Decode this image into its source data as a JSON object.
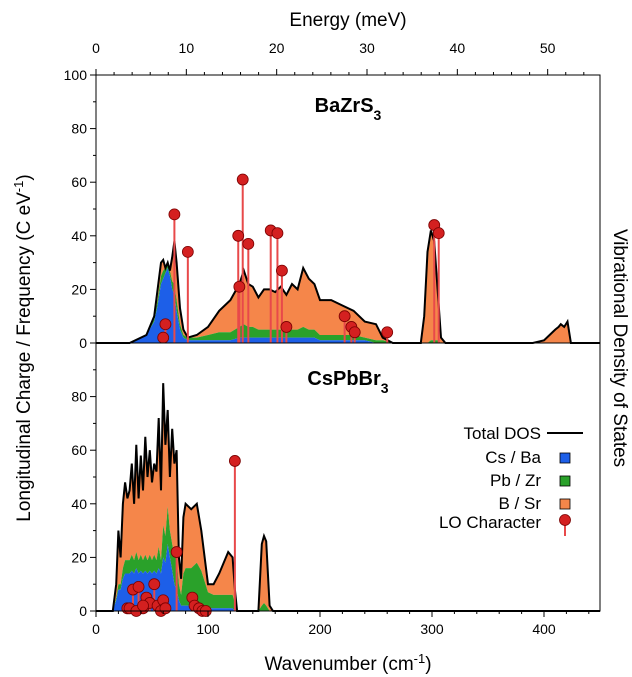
{
  "chart_data": {
    "type": "area",
    "top_axis": {
      "label": "Energy (meV)",
      "ticks": [
        "0",
        "10",
        "20",
        "30",
        "40",
        "50"
      ],
      "values": [
        0,
        10,
        20,
        30,
        40,
        50
      ],
      "meV_per_cm1": 0.123984
    },
    "x_axis": {
      "label": "Wavenumber (cm",
      "label_sup": "-1",
      "label_end": ")",
      "range": [
        0,
        450
      ],
      "ticks": [
        "0",
        "100",
        "200",
        "300",
        "400"
      ],
      "values": [
        0,
        100,
        200,
        300,
        400
      ]
    },
    "y_label_left": "Longitudinal Charge / Frequency (C eV",
    "y_label_left_sup": "-1",
    "y_label_left_end": ")",
    "y_label_right": "Vibrational Density of States",
    "legend": {
      "total": "Total DOS",
      "cs": "Cs / Ba",
      "pb": "Pb / Zr",
      "b": "B / Sr",
      "lo": "LO Character"
    },
    "colors": {
      "cs": "#1d5fe8",
      "pb": "#2aa12a",
      "b": "#f5864a",
      "lo_line": "#e8494a",
      "lo_marker": "#d42020",
      "total": "#000000"
    },
    "panels": [
      {
        "name": "BaZrS",
        "name_sub": "3",
        "ylim": [
          0,
          100
        ],
        "y_ticks": [
          "0",
          "20",
          "40",
          "60",
          "80",
          "100"
        ],
        "y_values": [
          0,
          20,
          40,
          60,
          80,
          100
        ],
        "dos": {
          "x": [
            0,
            30,
            45,
            52,
            55,
            58,
            60,
            62,
            64,
            66,
            68,
            70,
            72,
            75,
            78,
            82,
            90,
            100,
            110,
            120,
            128,
            132,
            136,
            140,
            145,
            150,
            155,
            160,
            165,
            170,
            175,
            180,
            185,
            190,
            195,
            200,
            210,
            220,
            230,
            240,
            250,
            256,
            265,
            280,
            290,
            293,
            296,
            299,
            302,
            305,
            308,
            312,
            330,
            360,
            390,
            400,
            405,
            410,
            413,
            415,
            418,
            421,
            424,
            450
          ],
          "total": [
            0,
            0,
            3,
            10,
            20,
            30,
            31,
            28,
            30,
            27,
            32,
            38,
            30,
            13,
            5,
            2,
            3,
            6,
            12,
            16,
            22,
            27,
            22,
            21,
            17,
            20,
            20,
            19,
            21,
            18,
            22,
            20,
            28,
            24,
            22,
            16,
            16,
            14,
            12,
            8,
            7,
            2,
            0,
            0,
            0,
            10,
            34,
            42,
            38,
            20,
            2,
            0,
            0,
            0,
            0,
            1,
            3,
            5,
            6,
            7,
            6,
            8,
            0,
            0
          ],
          "cs": [
            0,
            0,
            3,
            8,
            14,
            22,
            24,
            26,
            28,
            25,
            20,
            18,
            12,
            5,
            2,
            1,
            1,
            1,
            1,
            1,
            2,
            2,
            2,
            2,
            2,
            2,
            2,
            2,
            2,
            2,
            2,
            2,
            2,
            2,
            2,
            1,
            1,
            1,
            1,
            1,
            0,
            0,
            0,
            0,
            0,
            0,
            0,
            0,
            0,
            0,
            0,
            0,
            0,
            0,
            0,
            0,
            0,
            0,
            0,
            0,
            0,
            0,
            0,
            0
          ],
          "pb": [
            0,
            0,
            0,
            1,
            2,
            3,
            3,
            2,
            2,
            2,
            3,
            4,
            4,
            2,
            1,
            1,
            1,
            2,
            3,
            3,
            4,
            5,
            4,
            4,
            3,
            3,
            3,
            3,
            3,
            3,
            3,
            3,
            4,
            3,
            3,
            2,
            2,
            2,
            2,
            1,
            1,
            1,
            0,
            0,
            0,
            0,
            0,
            1,
            1,
            1,
            0,
            0,
            0,
            0,
            0,
            0,
            0,
            0,
            0,
            0,
            0,
            0,
            0,
            0
          ]
        },
        "lo": {
          "x": [
            70,
            82,
            60,
            62,
            127,
            128,
            131,
            136,
            156,
            162,
            166,
            170,
            222,
            228,
            231,
            260,
            302,
            306
          ],
          "y": [
            48,
            34,
            2,
            7,
            40,
            21,
            61,
            37,
            42,
            41,
            27,
            6,
            10,
            6,
            4,
            4,
            44,
            41
          ]
        }
      },
      {
        "name": "CsPbBr",
        "name_sub": "3",
        "ylim": [
          0,
          100
        ],
        "y_ticks": [
          "0",
          "20",
          "40",
          "60",
          "80"
        ],
        "y_values": [
          0,
          20,
          40,
          60,
          80
        ],
        "dos": {
          "x": [
            0,
            15,
            18,
            20,
            22,
            24,
            26,
            28,
            30,
            32,
            34,
            36,
            38,
            40,
            42,
            44,
            46,
            48,
            50,
            52,
            54,
            56,
            58,
            60,
            62,
            64,
            66,
            68,
            70,
            72,
            74,
            76,
            78,
            80,
            85,
            90,
            94,
            100,
            105,
            110,
            118,
            122,
            124,
            126,
            135,
            140,
            145,
            148,
            150,
            152,
            155,
            158,
            160,
            450
          ],
          "total": [
            0,
            0,
            10,
            30,
            20,
            40,
            48,
            42,
            45,
            55,
            40,
            62,
            42,
            58,
            45,
            65,
            50,
            60,
            48,
            55,
            52,
            72,
            45,
            85,
            62,
            75,
            50,
            68,
            55,
            60,
            20,
            12,
            35,
            40,
            38,
            40,
            30,
            10,
            10,
            14,
            22,
            20,
            8,
            0,
            0,
            0,
            0,
            25,
            28,
            26,
            2,
            0,
            0,
            0
          ],
          "cs": [
            0,
            0,
            4,
            8,
            8,
            12,
            14,
            14,
            14,
            15,
            14,
            16,
            14,
            15,
            14,
            15,
            14,
            15,
            14,
            15,
            14,
            16,
            14,
            20,
            18,
            25,
            20,
            15,
            10,
            8,
            4,
            2,
            2,
            2,
            2,
            2,
            1,
            1,
            1,
            1,
            1,
            1,
            0,
            0,
            0,
            0,
            0,
            0,
            0,
            0,
            0,
            0,
            0,
            0
          ],
          "pb": [
            0,
            0,
            1,
            2,
            2,
            4,
            5,
            5,
            5,
            6,
            5,
            6,
            5,
            6,
            5,
            6,
            5,
            6,
            5,
            6,
            5,
            8,
            5,
            12,
            10,
            14,
            10,
            10,
            10,
            12,
            6,
            4,
            12,
            14,
            14,
            16,
            14,
            6,
            5,
            5,
            5,
            5,
            3,
            0,
            0,
            0,
            0,
            2,
            3,
            2,
            0,
            0,
            0,
            0
          ]
        },
        "lo": {
          "x": [
            124,
            72,
            28,
            33,
            38,
            42,
            45,
            48,
            52,
            55,
            58,
            60,
            62,
            86,
            88,
            92,
            95,
            98,
            30,
            36,
            42
          ],
          "y": [
            56,
            22,
            1,
            8,
            9,
            1,
            5,
            3,
            10,
            2,
            0,
            4,
            1,
            5,
            2,
            1,
            0,
            0,
            1,
            0,
            2
          ]
        }
      }
    ]
  }
}
